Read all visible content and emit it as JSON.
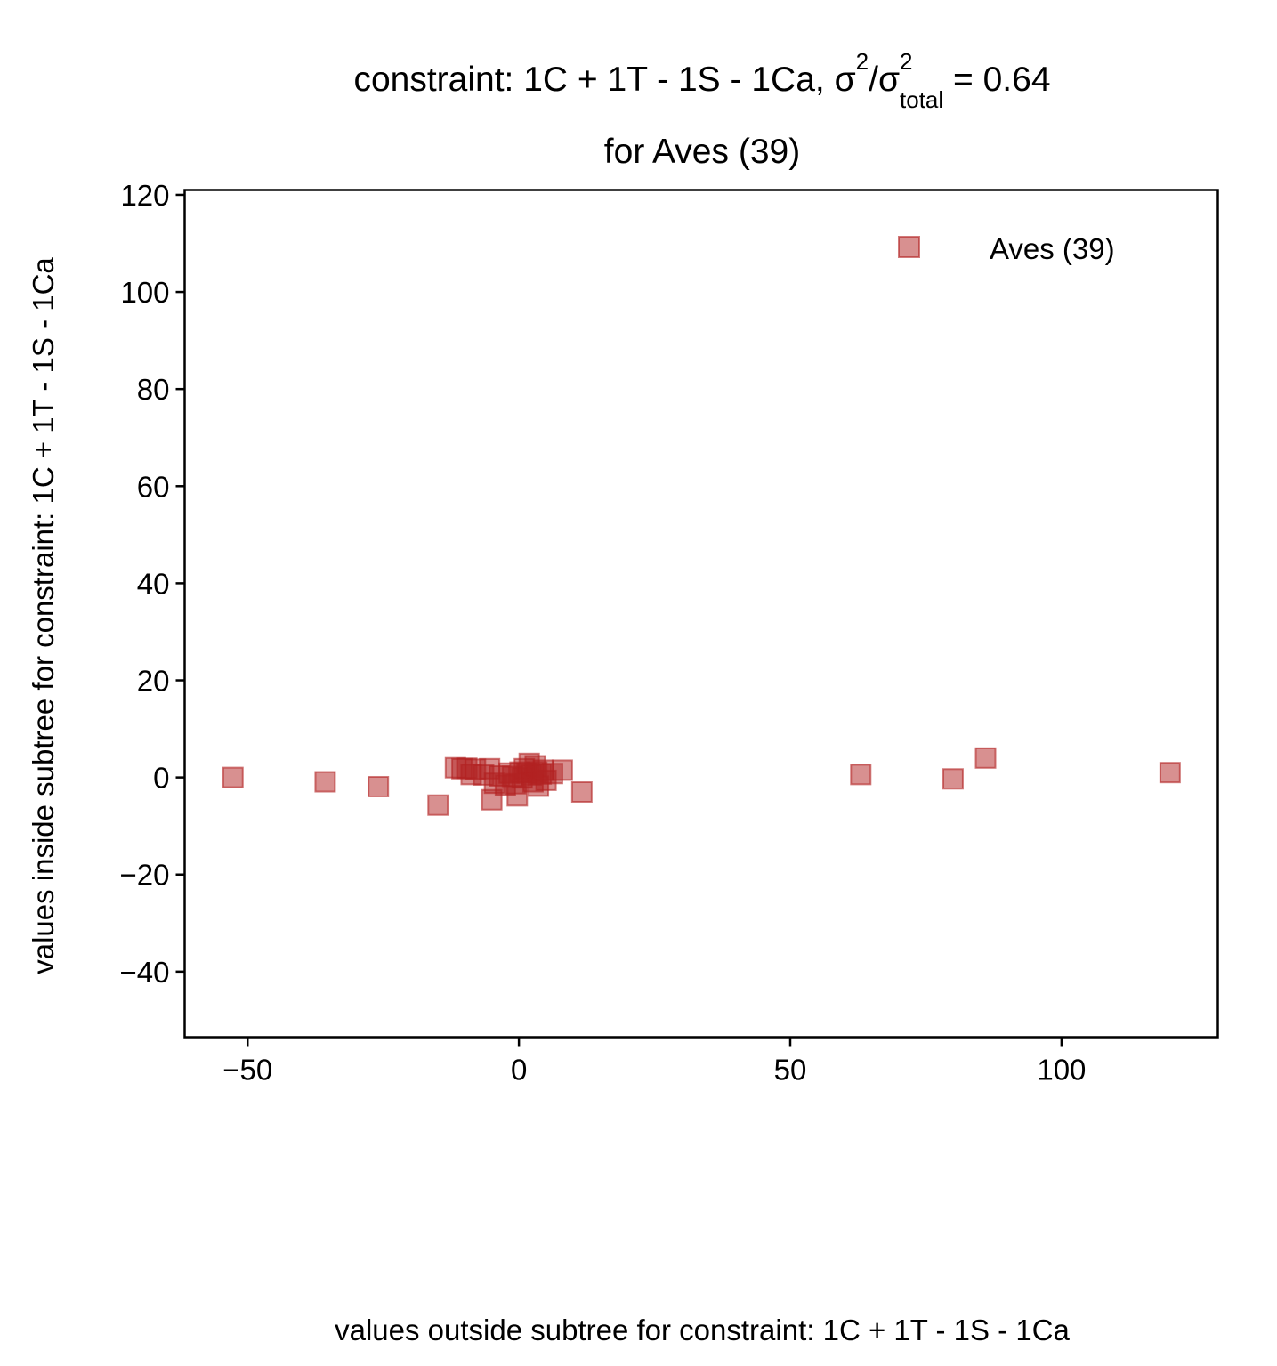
{
  "chart_data": {
    "type": "scatter",
    "title": {
      "prefix": "constraint: 1C + 1T - 1S - 1Ca, σ",
      "sup1": "2",
      "mid": "/σ",
      "sub": "total",
      "sup2": "2",
      "suffix": " =  0.64",
      "line2": "for Aves (39)"
    },
    "xlabel": "values outside subtree for constraint: 1C + 1T - 1S - 1Ca",
    "ylabel": "values inside subtree for constraint: 1C + 1T - 1S - 1Ca",
    "xlim": [
      -61.6,
      128.8
    ],
    "ylim": [
      -53.5,
      121
    ],
    "xticks": [
      {
        "value": -50,
        "label": "−50"
      },
      {
        "value": 0,
        "label": "0"
      },
      {
        "value": 50,
        "label": "50"
      },
      {
        "value": 100,
        "label": "100"
      }
    ],
    "yticks": [
      {
        "value": -40,
        "label": "−40"
      },
      {
        "value": -20,
        "label": "−20"
      },
      {
        "value": 0,
        "label": "0"
      },
      {
        "value": 20,
        "label": "20"
      },
      {
        "value": 40,
        "label": "40"
      },
      {
        "value": 60,
        "label": "60"
      },
      {
        "value": 80,
        "label": "80"
      },
      {
        "value": 100,
        "label": "100"
      },
      {
        "value": 120,
        "label": "120"
      }
    ],
    "grid": false,
    "legend_position": "top-right",
    "series": [
      {
        "name": "Aves (39)",
        "color": "#b22222",
        "marker": "square",
        "points": [
          [
            -52.7,
            0.0
          ],
          [
            -35.7,
            -0.9
          ],
          [
            -25.9,
            -1.9
          ],
          [
            -14.9,
            -5.7
          ],
          [
            -11.7,
            2.0
          ],
          [
            -10.5,
            1.8
          ],
          [
            -9.6,
            1.9
          ],
          [
            -8.8,
            0.6
          ],
          [
            -8.0,
            1.7
          ],
          [
            -6.5,
            0.5
          ],
          [
            -5.4,
            1.8
          ],
          [
            -5.0,
            -4.6
          ],
          [
            -4.5,
            -1.2
          ],
          [
            -3.6,
            0.3
          ],
          [
            -2.5,
            -1.6
          ],
          [
            -1.8,
            0.9
          ],
          [
            -1.2,
            0.2
          ],
          [
            -0.6,
            -1.3
          ],
          [
            -0.3,
            -3.8
          ],
          [
            0.2,
            1.1
          ],
          [
            0.6,
            -0.1
          ],
          [
            1.0,
            1.8
          ],
          [
            1.5,
            0.9
          ],
          [
            1.9,
            2.9
          ],
          [
            2.3,
            0.5
          ],
          [
            2.6,
            -0.9
          ],
          [
            3.0,
            2.4
          ],
          [
            3.3,
            1.1
          ],
          [
            3.6,
            -1.8
          ],
          [
            4.1,
            0.7
          ],
          [
            4.5,
            1.5
          ],
          [
            5.0,
            -0.6
          ],
          [
            6.2,
            0.8
          ],
          [
            8.0,
            1.5
          ],
          [
            11.6,
            -3.0
          ],
          [
            63.0,
            0.6
          ],
          [
            80.0,
            -0.3
          ],
          [
            86.0,
            4.0
          ],
          [
            120.0,
            1.0
          ]
        ]
      }
    ]
  }
}
